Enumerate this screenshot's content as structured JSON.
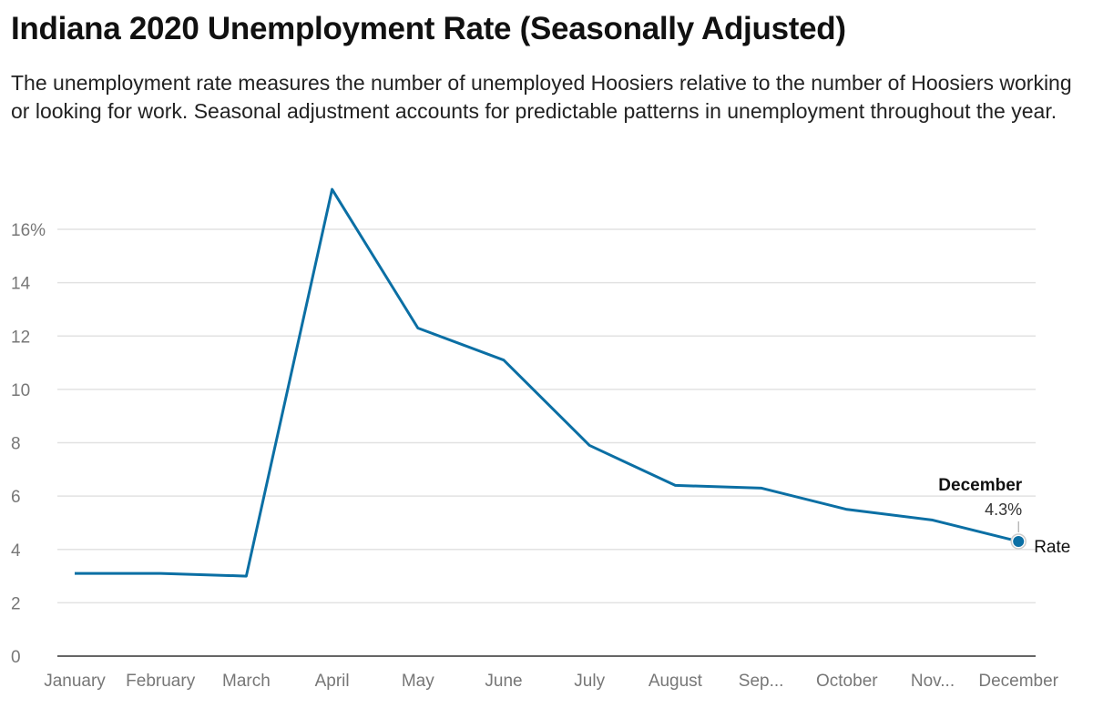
{
  "chart_data": {
    "type": "line",
    "title": "Indiana 2020 Unemployment Rate (Seasonally Adjusted)",
    "subtitle": "The unemployment rate measures the number of unemployed Hoosiers relative to the number of Hoosiers working or looking for work. Seasonal adjustment accounts for predictable patterns in unemployment throughout the year.",
    "xlabel": "",
    "ylabel": "",
    "categories": [
      "January",
      "February",
      "March",
      "April",
      "May",
      "June",
      "July",
      "August",
      "September",
      "October",
      "November",
      "December"
    ],
    "x_tick_labels": [
      "January",
      "February",
      "March",
      "April",
      "May",
      "June",
      "July",
      "August",
      "Sep...",
      "October",
      "Nov...",
      "December"
    ],
    "y_ticks": [
      0,
      2,
      4,
      6,
      8,
      10,
      12,
      14,
      16
    ],
    "y_tick_labels": [
      "0",
      "2",
      "4",
      "6",
      "8",
      "10",
      "12",
      "14",
      "16%"
    ],
    "ylim": [
      0,
      17.5
    ],
    "grid": true,
    "series": [
      {
        "name": "Rate",
        "color": "#0b6fa4",
        "values": [
          3.1,
          3.1,
          3.0,
          17.5,
          12.3,
          11.1,
          7.9,
          6.4,
          6.3,
          5.5,
          5.1,
          4.3
        ]
      }
    ],
    "annotation": {
      "label": "December",
      "value": "4.3%"
    }
  }
}
